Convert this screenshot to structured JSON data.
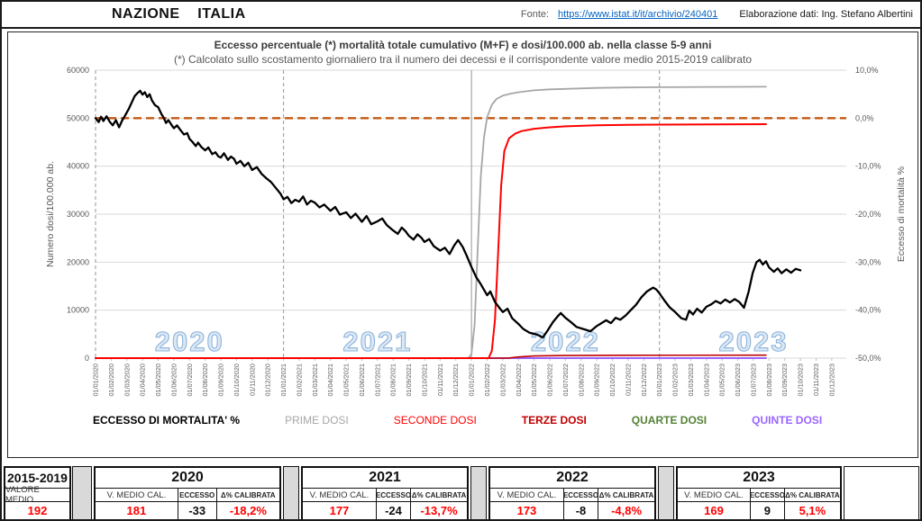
{
  "header": {
    "nation": "NAZIONE    ITALIA",
    "fonte_label": "Fonte:",
    "fonte_url": "https://www.istat.it/it/archivio/240401",
    "credit": "Elaborazione dati: Ing. Stefano Albertini"
  },
  "chart_data": {
    "type": "line",
    "title": "Eccesso percentuale (*) mortalità totale cumulativo (M+F) e dosi/100.000 ab. nella classe 5-9 anni",
    "subtitle": "(*) Calcolato sullo scostamento giornaliero tra il numero dei decessi e il corrispondente valore medio 2015-2019 calibrato",
    "y_left_label": "Numero dosi/100.000 ab.",
    "y_right_label": "Eccesso di mortalità %",
    "y_left_ticks": [
      "0",
      "10000",
      "20000",
      "30000",
      "40000",
      "50000",
      "60000"
    ],
    "y_right_ticks": [
      "-50,0%",
      "-40,0%",
      "-30,0%",
      "-20,0%",
      "-10,0%",
      "0,0%",
      "10,0%"
    ],
    "y_left_range": [
      0,
      60000
    ],
    "y_right_range_pct": [
      -50,
      10
    ],
    "grid": true,
    "zero_reference_pct": 0,
    "x_labels": [
      "01/01/2020",
      "01/02/2020",
      "01/03/2020",
      "01/04/2020",
      "01/05/2020",
      "01/06/2020",
      "01/07/2020",
      "01/08/2020",
      "01/09/2020",
      "01/10/2020",
      "01/11/2020",
      "01/12/2020",
      "01/01/2021",
      "01/02/2021",
      "01/03/2021",
      "01/04/2021",
      "01/05/2021",
      "01/06/2021",
      "01/07/2021",
      "01/08/2021",
      "01/09/2021",
      "01/10/2021",
      "01/11/2021",
      "01/12/2021",
      "01/01/2022",
      "01/02/2022",
      "01/03/2022",
      "01/04/2022",
      "01/05/2022",
      "01/06/2022",
      "01/07/2022",
      "01/08/2022",
      "01/09/2022",
      "01/10/2022",
      "01/11/2022",
      "01/12/2022",
      "01/01/2023",
      "01/02/2023",
      "01/03/2023",
      "01/04/2023",
      "01/05/2023",
      "01/06/2023",
      "01/07/2023",
      "01/08/2023",
      "01/09/2023",
      "01/10/2023",
      "01/11/2023",
      "01/12/2023"
    ],
    "year_separators": [
      {
        "month": 0,
        "style": "dashed"
      },
      {
        "month": 12,
        "style": "dashed"
      },
      {
        "month": 24,
        "style": "solid"
      },
      {
        "month": 36,
        "style": "dashed"
      }
    ],
    "watermarks": [
      {
        "text": "2020",
        "month": 6
      },
      {
        "text": "2021",
        "month": 18
      },
      {
        "text": "2022",
        "month": 30
      },
      {
        "text": "2023",
        "month": 42
      }
    ],
    "colors": {
      "grid": "#d9d9d9",
      "axis_text": "#595959",
      "zero_line": "#c55a11",
      "separator": "#a6a6a6",
      "watermark_fill": "#dbe8f4",
      "watermark_stroke": "#8eb4dc"
    },
    "series": [
      {
        "name": "QUARTE DOSI",
        "color": "#538135",
        "width": 1.6,
        "unit": "dosi",
        "points": [
          [
            0,
            0
          ],
          [
            42.8,
            0
          ]
        ]
      },
      {
        "name": "QUINTE DOSI",
        "color": "#9966ff",
        "width": 2,
        "unit": "dosi",
        "points": [
          [
            0,
            0
          ],
          [
            42.8,
            0
          ]
        ]
      },
      {
        "name": "TERZE DOSI",
        "color": "#c00000",
        "width": 1.6,
        "unit": "dosi",
        "points": [
          [
            0,
            0
          ],
          [
            26.3,
            0
          ],
          [
            27.0,
            250
          ],
          [
            28,
            450
          ],
          [
            30,
            550
          ],
          [
            34,
            600
          ],
          [
            42.8,
            620
          ]
        ]
      },
      {
        "name": "PRIME DOSI",
        "color": "#a6a6a6",
        "width": 1.8,
        "unit": "dosi",
        "points": [
          [
            0,
            0
          ],
          [
            23.8,
            0
          ],
          [
            24.0,
            800
          ],
          [
            24.2,
            7000
          ],
          [
            24.4,
            23000
          ],
          [
            24.6,
            38000
          ],
          [
            24.8,
            46000
          ],
          [
            25.0,
            50200
          ],
          [
            25.3,
            52800
          ],
          [
            25.6,
            54000
          ],
          [
            26.0,
            54700
          ],
          [
            26.5,
            55100
          ],
          [
            27,
            55400
          ],
          [
            28,
            55800
          ],
          [
            29,
            56000
          ],
          [
            30,
            56100
          ],
          [
            32,
            56300
          ],
          [
            34,
            56400
          ],
          [
            36,
            56450
          ],
          [
            42.8,
            56550
          ]
        ]
      },
      {
        "name": "SECONDE DOSI",
        "color": "#ff0000",
        "width": 2,
        "unit": "dosi",
        "points": [
          [
            0,
            0
          ],
          [
            25.1,
            0
          ],
          [
            25.3,
            1500
          ],
          [
            25.5,
            8000
          ],
          [
            25.7,
            22000
          ],
          [
            25.9,
            36000
          ],
          [
            26.1,
            43200
          ],
          [
            26.4,
            45800
          ],
          [
            26.8,
            46800
          ],
          [
            27.2,
            47300
          ],
          [
            28,
            47800
          ],
          [
            29,
            48100
          ],
          [
            30,
            48300
          ],
          [
            32,
            48500
          ],
          [
            34,
            48600
          ],
          [
            36,
            48650
          ],
          [
            42.8,
            48750
          ]
        ]
      },
      {
        "name": "ECCESSO DI MORTALITA' %",
        "color": "#000000",
        "width": 2.3,
        "unit": "pct",
        "points": [
          [
            0,
            0.0
          ],
          [
            0.2,
            -0.8
          ],
          [
            0.35,
            0.3
          ],
          [
            0.5,
            -0.6
          ],
          [
            0.7,
            0.4
          ],
          [
            0.9,
            -0.7
          ],
          [
            1.1,
            -1.5
          ],
          [
            1.3,
            -0.4
          ],
          [
            1.5,
            -1.9
          ],
          [
            1.7,
            -0.5
          ],
          [
            1.9,
            0.6
          ],
          [
            2.1,
            1.8
          ],
          [
            2.3,
            3.2
          ],
          [
            2.5,
            4.6
          ],
          [
            2.7,
            5.3
          ],
          [
            2.85,
            5.7
          ],
          [
            3.0,
            4.9
          ],
          [
            3.15,
            5.4
          ],
          [
            3.3,
            4.4
          ],
          [
            3.45,
            5.0
          ],
          [
            3.6,
            3.7
          ],
          [
            3.8,
            2.7
          ],
          [
            4.0,
            2.3
          ],
          [
            4.2,
            0.9
          ],
          [
            4.35,
            0.1
          ],
          [
            4.5,
            -1.0
          ],
          [
            4.65,
            -0.4
          ],
          [
            4.85,
            -1.4
          ],
          [
            5.0,
            -2.1
          ],
          [
            5.2,
            -1.5
          ],
          [
            5.45,
            -2.6
          ],
          [
            5.65,
            -3.4
          ],
          [
            5.85,
            -3.1
          ],
          [
            6.0,
            -4.3
          ],
          [
            6.2,
            -5.0
          ],
          [
            6.4,
            -5.8
          ],
          [
            6.55,
            -5.1
          ],
          [
            6.75,
            -6.0
          ],
          [
            7.0,
            -6.7
          ],
          [
            7.2,
            -6.1
          ],
          [
            7.45,
            -7.5
          ],
          [
            7.65,
            -7.1
          ],
          [
            7.85,
            -8.0
          ],
          [
            8.0,
            -8.2
          ],
          [
            8.2,
            -7.3
          ],
          [
            8.45,
            -8.7
          ],
          [
            8.65,
            -8.0
          ],
          [
            8.85,
            -8.5
          ],
          [
            9.0,
            -9.5
          ],
          [
            9.25,
            -8.9
          ],
          [
            9.5,
            -10.0
          ],
          [
            9.75,
            -9.3
          ],
          [
            10.0,
            -10.8
          ],
          [
            10.3,
            -10.2
          ],
          [
            10.6,
            -11.6
          ],
          [
            10.9,
            -12.5
          ],
          [
            11.2,
            -13.3
          ],
          [
            11.5,
            -14.5
          ],
          [
            11.8,
            -15.7
          ],
          [
            12.0,
            -16.9
          ],
          [
            12.25,
            -16.4
          ],
          [
            12.5,
            -17.7
          ],
          [
            12.75,
            -17.0
          ],
          [
            13.0,
            -17.4
          ],
          [
            13.25,
            -16.3
          ],
          [
            13.5,
            -18.0
          ],
          [
            13.75,
            -17.2
          ],
          [
            14.0,
            -17.6
          ],
          [
            14.3,
            -18.6
          ],
          [
            14.6,
            -18.0
          ],
          [
            15.0,
            -19.3
          ],
          [
            15.3,
            -18.5
          ],
          [
            15.6,
            -20.1
          ],
          [
            16.0,
            -19.6
          ],
          [
            16.3,
            -20.8
          ],
          [
            16.6,
            -19.9
          ],
          [
            17.0,
            -21.6
          ],
          [
            17.3,
            -20.4
          ],
          [
            17.6,
            -22.1
          ],
          [
            18.0,
            -21.5
          ],
          [
            18.3,
            -20.9
          ],
          [
            18.6,
            -22.3
          ],
          [
            19.0,
            -23.4
          ],
          [
            19.3,
            -24.1
          ],
          [
            19.55,
            -22.8
          ],
          [
            19.8,
            -23.6
          ],
          [
            20.0,
            -24.5
          ],
          [
            20.3,
            -25.3
          ],
          [
            20.55,
            -24.2
          ],
          [
            20.8,
            -24.9
          ],
          [
            21.0,
            -25.8
          ],
          [
            21.3,
            -25.2
          ],
          [
            21.6,
            -26.7
          ],
          [
            22.0,
            -27.6
          ],
          [
            22.3,
            -27.0
          ],
          [
            22.6,
            -28.3
          ],
          [
            22.9,
            -26.5
          ],
          [
            23.15,
            -25.4
          ],
          [
            23.45,
            -26.9
          ],
          [
            23.7,
            -28.7
          ],
          [
            24.0,
            -31.0
          ],
          [
            24.3,
            -33.1
          ],
          [
            24.6,
            -34.6
          ],
          [
            25.0,
            -36.9
          ],
          [
            25.2,
            -36.1
          ],
          [
            25.5,
            -38.3
          ],
          [
            25.8,
            -39.6
          ],
          [
            26.0,
            -40.4
          ],
          [
            26.3,
            -39.7
          ],
          [
            26.6,
            -41.7
          ],
          [
            27.0,
            -42.9
          ],
          [
            27.3,
            -43.9
          ],
          [
            27.7,
            -44.7
          ],
          [
            28.2,
            -45.1
          ],
          [
            28.55,
            -45.7
          ],
          [
            28.85,
            -44.3
          ],
          [
            29.2,
            -42.5
          ],
          [
            29.5,
            -41.3
          ],
          [
            29.7,
            -40.6
          ],
          [
            30.0,
            -41.6
          ],
          [
            30.35,
            -42.5
          ],
          [
            30.7,
            -43.5
          ],
          [
            31.2,
            -44.0
          ],
          [
            31.6,
            -44.4
          ],
          [
            32.0,
            -43.3
          ],
          [
            32.3,
            -42.7
          ],
          [
            32.6,
            -42.1
          ],
          [
            32.9,
            -42.7
          ],
          [
            33.2,
            -41.6
          ],
          [
            33.5,
            -42.0
          ],
          [
            33.85,
            -41.1
          ],
          [
            34.2,
            -39.9
          ],
          [
            34.5,
            -38.9
          ],
          [
            34.85,
            -37.3
          ],
          [
            35.2,
            -36.1
          ],
          [
            35.6,
            -35.3
          ],
          [
            35.8,
            -35.7
          ],
          [
            36.0,
            -36.5
          ],
          [
            36.3,
            -37.9
          ],
          [
            36.65,
            -39.4
          ],
          [
            37.0,
            -40.4
          ],
          [
            37.4,
            -41.7
          ],
          [
            37.7,
            -42.0
          ],
          [
            37.9,
            -40.1
          ],
          [
            38.15,
            -40.9
          ],
          [
            38.4,
            -39.7
          ],
          [
            38.7,
            -40.5
          ],
          [
            39.0,
            -39.3
          ],
          [
            39.3,
            -38.8
          ],
          [
            39.6,
            -38.1
          ],
          [
            39.9,
            -38.6
          ],
          [
            40.2,
            -37.8
          ],
          [
            40.5,
            -38.4
          ],
          [
            40.8,
            -37.7
          ],
          [
            41.1,
            -38.3
          ],
          [
            41.4,
            -39.5
          ],
          [
            41.7,
            -36.1
          ],
          [
            41.95,
            -32.3
          ],
          [
            42.2,
            -30.0
          ],
          [
            42.4,
            -29.5
          ],
          [
            42.6,
            -30.5
          ],
          [
            42.8,
            -29.8
          ],
          [
            43.0,
            -31.1
          ],
          [
            43.3,
            -32.0
          ],
          [
            43.55,
            -31.3
          ],
          [
            43.8,
            -32.3
          ],
          [
            44.1,
            -31.5
          ],
          [
            44.4,
            -32.2
          ],
          [
            44.7,
            -31.4
          ],
          [
            45.0,
            -31.7
          ]
        ]
      }
    ]
  },
  "legend": [
    {
      "label": "ECCESSO DI MORTALITA' %",
      "color": "#000000",
      "weight": "bold"
    },
    {
      "label": "PRIME DOSI",
      "color": "#a6a6a6",
      "weight": "normal"
    },
    {
      "label": "SECONDE DOSI",
      "color": "#ff0000",
      "weight": "normal"
    },
    {
      "label": "TERZE DOSI",
      "color": "#c00000",
      "weight": "bold"
    },
    {
      "label": "QUARTE DOSI",
      "color": "#538135",
      "weight": "bold"
    },
    {
      "label": "QUINTE DOSI",
      "color": "#9966ff",
      "weight": "bold"
    }
  ],
  "tables": {
    "reference": {
      "period": "2015-2019",
      "label": "VALORE MEDIO",
      "value": "192"
    },
    "sub_headers": [
      "V. MEDIO CAL.",
      "ECCESSO",
      "Δ% CALIBRATA"
    ],
    "years": [
      {
        "year": "2020",
        "v_medio": "181",
        "eccesso": "-33",
        "delta": "-18,2%"
      },
      {
        "year": "2021",
        "v_medio": "177",
        "eccesso": "-24",
        "delta": "-13,7%"
      },
      {
        "year": "2022",
        "v_medio": "173",
        "eccesso": "-8",
        "delta": "-4,8%"
      },
      {
        "year": "2023",
        "v_medio": "169",
        "eccesso": "9",
        "delta": "5,1%"
      }
    ]
  }
}
